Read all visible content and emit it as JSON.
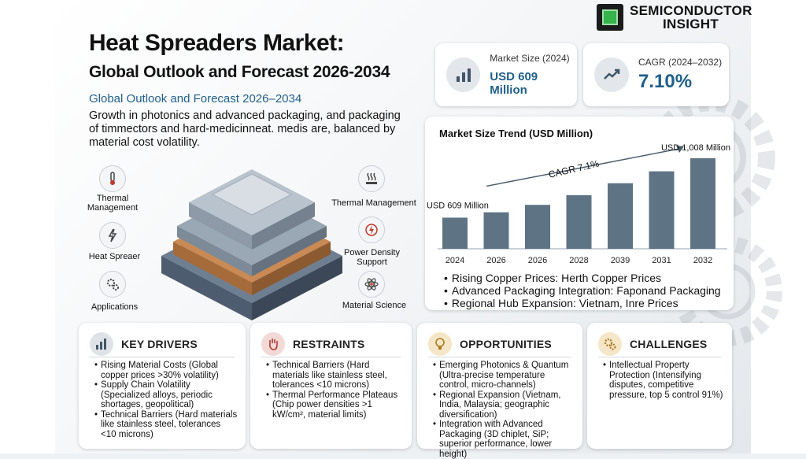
{
  "brand": {
    "line1": "SEMICONDUCTOR",
    "line2": "INSIGHT"
  },
  "title": {
    "line1": "Heat Spreaders Market:",
    "line2": "Global Outlook and Forecast 2026-2034"
  },
  "subtitle": "Global Outlook and Forecast 2026–2034",
  "description": "Growth in photonics and advanced packaging, and packaging of timmectors and hard-medicinneat. medis are, balanced by material cost volatility.",
  "stats": {
    "market_size": {
      "label": "Market Size (2024)",
      "value": "USD 609 Million"
    },
    "cagr": {
      "label": "CAGR (2024–2032)",
      "value": "7.10%"
    }
  },
  "features": {
    "thermal_left": "Thermal Management",
    "heat_spreader": "Heat Spreaer",
    "applications": "Applications",
    "thermal_right": "Thermal Management",
    "power_density": "Power Density Support",
    "material_science": "Material Science"
  },
  "chart_data": {
    "type": "bar",
    "title": "Market Size Trend (USD Million)",
    "categories": [
      "2024",
      "2026",
      "2026",
      "2028",
      "2039",
      "2031",
      "2032"
    ],
    "values": [
      609,
      645,
      695,
      760,
      840,
      920,
      1008
    ],
    "ylim": [
      400,
      1050
    ],
    "bar_color": "#5e7384",
    "annotations": {
      "start": "USD 609 Million",
      "end": "USD 1,008 Million",
      "cagr": "CAGR 7.1%"
    }
  },
  "chart_bullets": [
    "Rising Copper Prices: Herth Copper Prices",
    "Advanced Packaging Integration: Faponand Packaging",
    "Regional Hub Expansion: Vietnam, Inre Prices"
  ],
  "panels": {
    "drivers": {
      "title": "KEY DRIVERS",
      "items": [
        "Rising Material Costs (Global copper prices >30% volatility)",
        "Supply Chain Volatility (Specialized alloys, periodic shortages, geopolitical)",
        "Technical Barriers (Hard materials like stainless steel, tolerances <10 microns)"
      ]
    },
    "restraints": {
      "title": "RESTRAINTS",
      "items": [
        "Technical Barriers (Hard materials like stainless steel, tolerances <10 microns)",
        "Thermal Performance Plateaus (Chip power densities >1 kW/cm², material limits)"
      ]
    },
    "opportunities": {
      "title": "OPPORTUNITIES",
      "items": [
        "Emerging Photonics & Quantum (Ultra-precise temperature control, micro-channels)",
        "Regional Expansion (Vietnam, India, Malaysia; geographic diversification)",
        "Integration with Advanced Packaging (3D chiplet, SiP; superior performance, lower height)"
      ]
    },
    "challenges": {
      "title": "CHALLENGES",
      "items": [
        "Intellectual Property Protection (Intensifying disputes, competitive pressure, top 5 control 91%)"
      ]
    }
  },
  "colors": {
    "accent": "#1f5f8a",
    "drivers_icon_bg": "#dfe3e8",
    "restraints_icon_bg": "#f3d9d6",
    "opportunities_icon_bg": "#f5e6c8",
    "challenges_icon_bg": "#f5e6c8"
  },
  "icons": {
    "market_size": "bar-chart-icon",
    "cagr": "trend-up-icon",
    "drivers": "bar-chart-icon",
    "restraints": "hand-stop-icon",
    "opportunities": "lightbulb-icon",
    "challenges": "gears-icon"
  }
}
